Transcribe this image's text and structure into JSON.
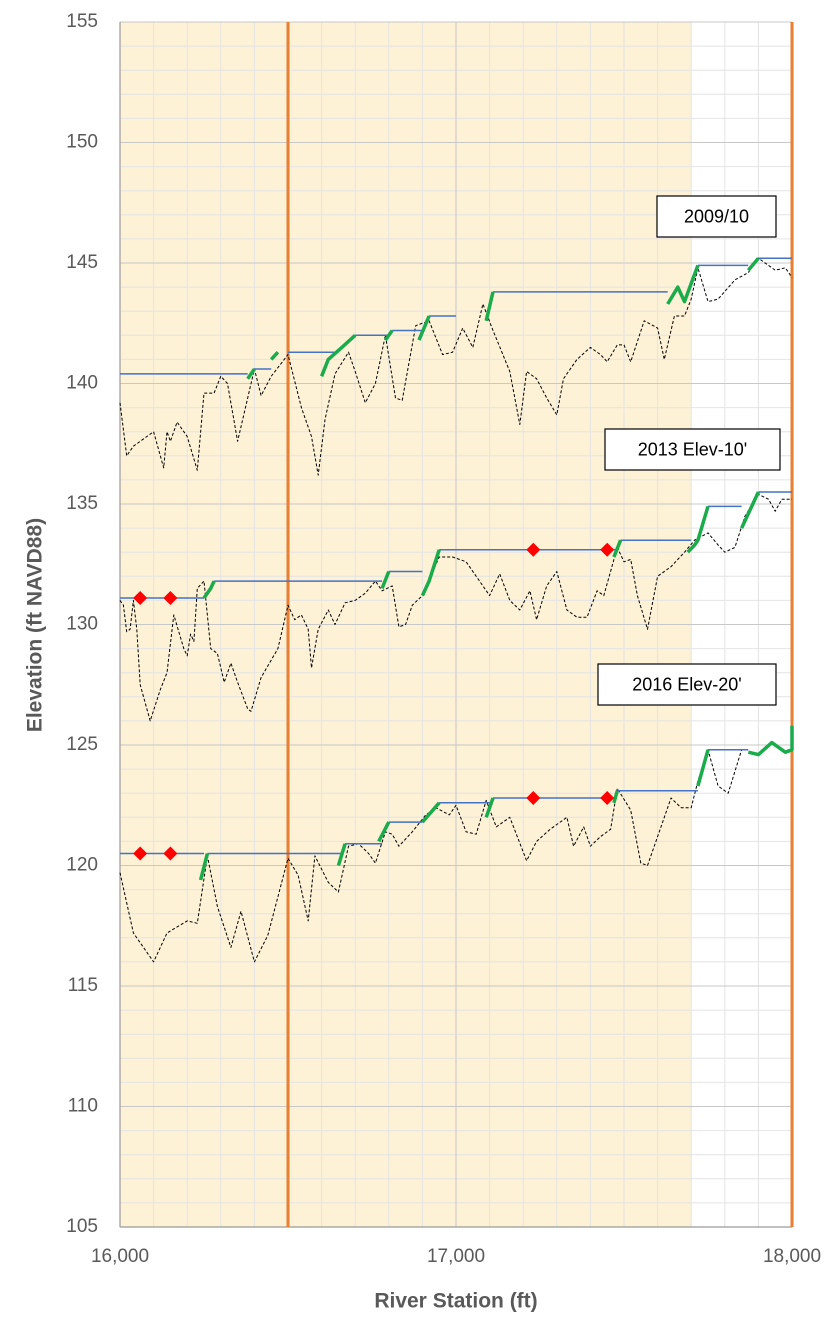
{
  "chart_data": {
    "type": "line",
    "x_label": "River Station (ft)",
    "y_label": "Elevation (ft NAVD88)",
    "xlim": [
      16000,
      18000
    ],
    "ylim": [
      105,
      155
    ],
    "xticks": [
      {
        "value": 16000,
        "label": "16,000"
      },
      {
        "value": 17000,
        "label": "17,000"
      },
      {
        "value": 18000,
        "label": "18,000"
      }
    ],
    "yticks": [
      105,
      110,
      115,
      120,
      125,
      130,
      135,
      140,
      145,
      150,
      155
    ],
    "xminorticks": [
      16100,
      16200,
      16300,
      16400,
      16500,
      16600,
      16700,
      16800,
      16900,
      17100,
      17200,
      17300,
      17400,
      17500,
      17600,
      17700,
      17800,
      17900
    ],
    "yminorticks": [
      106,
      107,
      108,
      109,
      111,
      112,
      113,
      114,
      116,
      117,
      118,
      119,
      121,
      122,
      123,
      124,
      126,
      127,
      128,
      129,
      131,
      132,
      133,
      134,
      136,
      137,
      138,
      139,
      141,
      142,
      143,
      144,
      146,
      147,
      148,
      149,
      151,
      152,
      153,
      154
    ],
    "grid": true,
    "shaded_region": {
      "x": [
        16000,
        17700
      ],
      "color": "#fdf1d6"
    },
    "vlines": {
      "x": [
        16500,
        18000
      ],
      "color": "#ed7d31"
    },
    "annotations": [
      "2009/10",
      "2013 Elev-10'",
      "2016 Elev-20'"
    ],
    "series": [
      {
        "kind": "line",
        "color": "#000000",
        "dash": true,
        "width": 1,
        "x": [
          16000,
          16020,
          16040,
          16080,
          16100,
          16130,
          16140,
          16150,
          16170,
          16200,
          16230,
          16250,
          16280,
          16300,
          16320,
          16350,
          16380,
          16400,
          16420,
          16450,
          16500,
          16540,
          16570,
          16590,
          16610,
          16640,
          16680,
          16700,
          16730,
          16760,
          16790,
          16820,
          16840,
          16880,
          16920,
          16960,
          16990,
          17020,
          17050,
          17080,
          17110,
          17160,
          17190,
          17210,
          17240,
          17270,
          17300,
          17320,
          17360,
          17400,
          17430,
          17450,
          17480,
          17500,
          17520,
          17560,
          17600,
          17620,
          17650,
          17680,
          17700,
          17720,
          17750,
          17780,
          17830,
          17870,
          17900,
          17950,
          17980,
          18000
        ],
        "values": [
          139.2,
          137.0,
          137.4,
          137.8,
          138.0,
          136.5,
          138.0,
          137.6,
          138.4,
          137.8,
          136.4,
          139.6,
          139.6,
          140.3,
          140.0,
          137.6,
          139.4,
          140.6,
          139.5,
          140.3,
          141.2,
          139.0,
          137.8,
          136.2,
          138.5,
          140.4,
          141.3,
          140.5,
          139.2,
          140.0,
          142.0,
          139.4,
          139.3,
          142.4,
          142.6,
          141.2,
          141.3,
          142.3,
          141.5,
          143.3,
          142.2,
          140.5,
          138.3,
          140.5,
          140.2,
          139.4,
          138.7,
          140.2,
          141.0,
          141.5,
          141.2,
          140.9,
          141.6,
          141.6,
          140.9,
          142.6,
          142.3,
          141.0,
          142.8,
          142.8,
          143.5,
          144.8,
          143.4,
          143.5,
          144.3,
          144.6,
          145.2,
          144.7,
          144.8,
          144.4
        ]
      },
      {
        "kind": "line",
        "color": "#4472c4",
        "dash": false,
        "width": 1.5,
        "x": [
          16000,
          16380,
          null,
          16400,
          16450,
          null,
          16500,
          16650,
          null,
          16700,
          16800,
          null,
          16810,
          16900,
          null,
          16920,
          17000,
          null,
          17110,
          17630,
          null,
          17720,
          17870,
          null,
          17900,
          18000
        ],
        "values": [
          140.4,
          140.4,
          null,
          140.6,
          140.6,
          null,
          141.3,
          141.3,
          null,
          142.0,
          142.0,
          null,
          142.2,
          142.2,
          null,
          142.8,
          142.8,
          null,
          143.8,
          143.8,
          null,
          144.9,
          144.9,
          null,
          145.2,
          145.2
        ]
      },
      {
        "kind": "line",
        "color": "#1aab4b",
        "dash": false,
        "width": 3.5,
        "x": [
          16380,
          16400,
          null,
          16450,
          16470,
          null,
          16600,
          16620,
          16660,
          16700,
          null,
          16790,
          16810,
          null,
          16890,
          16920,
          null,
          17090,
          17110,
          null,
          17630,
          17660,
          17680,
          17720,
          null,
          17870,
          17900
        ],
        "values": [
          140.2,
          140.6,
          null,
          141.0,
          141.3,
          null,
          140.3,
          141.0,
          141.5,
          142.0,
          null,
          141.8,
          142.2,
          null,
          141.8,
          142.8,
          null,
          142.6,
          143.8,
          null,
          143.3,
          144.0,
          143.4,
          144.9,
          null,
          144.7,
          145.2
        ]
      },
      {
        "kind": "line",
        "color": "#000000",
        "dash": true,
        "width": 1,
        "x": [
          16000,
          16010,
          16020,
          16030,
          16040,
          16050,
          16060,
          16090,
          16120,
          16140,
          16160,
          16190,
          16200,
          16210,
          16220,
          16230,
          16250,
          16270,
          16290,
          16310,
          16330,
          16350,
          16380,
          16390,
          16420,
          16470,
          16500,
          16520,
          16540,
          16560,
          16570,
          16590,
          16620,
          16640,
          16670,
          16700,
          16730,
          16760,
          16780,
          16810,
          16830,
          16850,
          16870,
          16900,
          16950,
          16990,
          17030,
          17080,
          17100,
          17130,
          17160,
          17190,
          17220,
          17240,
          17270,
          17300,
          17330,
          17360,
          17390,
          17420,
          17440,
          17480,
          17500,
          17520,
          17540,
          17570,
          17600,
          17640,
          17680,
          17710,
          17750,
          17780,
          17800,
          17830,
          17860,
          17900,
          17930,
          17950,
          17970,
          18000
        ],
        "values": [
          131.0,
          130.8,
          129.7,
          129.8,
          131.0,
          129.8,
          127.5,
          126.0,
          127.3,
          128.0,
          130.4,
          129.0,
          128.7,
          129.6,
          129.3,
          131.5,
          131.8,
          129.0,
          128.8,
          127.6,
          128.4,
          127.6,
          126.5,
          126.4,
          127.8,
          129.0,
          130.8,
          130.2,
          130.4,
          129.8,
          128.2,
          129.8,
          130.6,
          130.0,
          130.9,
          131.0,
          131.3,
          131.8,
          131.4,
          131.6,
          129.9,
          130.0,
          130.8,
          131.2,
          132.8,
          132.8,
          132.6,
          131.6,
          131.2,
          132.1,
          131.0,
          130.6,
          131.4,
          130.2,
          131.6,
          132.2,
          130.6,
          130.3,
          130.3,
          131.4,
          131.2,
          133.2,
          132.6,
          132.7,
          131.2,
          129.8,
          132.0,
          132.4,
          133.0,
          133.5,
          133.8,
          133.3,
          133.0,
          133.2,
          134.5,
          135.4,
          135.2,
          134.7,
          135.2,
          135.2
        ]
      },
      {
        "kind": "line",
        "color": "#4472c4",
        "dash": false,
        "width": 1.5,
        "x": [
          16000,
          16250,
          null,
          16280,
          16780,
          null,
          16800,
          16900,
          null,
          16950,
          17480,
          null,
          17490,
          17700,
          null,
          17750,
          17850,
          null,
          17900,
          18000
        ],
        "values": [
          131.1,
          131.1,
          null,
          131.8,
          131.8,
          null,
          132.2,
          132.2,
          null,
          133.1,
          133.1,
          null,
          133.5,
          133.5,
          null,
          134.9,
          134.9,
          null,
          135.5,
          135.5
        ]
      },
      {
        "kind": "line",
        "color": "#1aab4b",
        "dash": false,
        "width": 3.5,
        "x": [
          16250,
          16270,
          16280,
          null,
          16780,
          16800,
          null,
          16900,
          16920,
          16950,
          null,
          17470,
          17490,
          null,
          17690,
          17710,
          17720,
          17750,
          null,
          17850,
          17880,
          17900
        ],
        "values": [
          131.1,
          131.5,
          131.8,
          null,
          131.5,
          132.2,
          null,
          131.2,
          131.8,
          133.1,
          null,
          132.8,
          133.5,
          null,
          133.0,
          133.3,
          133.5,
          134.9,
          null,
          134.0,
          134.9,
          135.5
        ]
      },
      {
        "kind": "markers",
        "color": "#ff0000",
        "x": [
          16060,
          16150,
          17230,
          17450
        ],
        "values": [
          131.1,
          131.1,
          133.1,
          133.1
        ]
      },
      {
        "kind": "line",
        "color": "#000000",
        "dash": true,
        "width": 1,
        "x": [
          16000,
          16040,
          16100,
          16140,
          16200,
          16230,
          16260,
          16290,
          16330,
          16360,
          16400,
          16440,
          16500,
          16530,
          16560,
          16580,
          16620,
          16650,
          16680,
          16710,
          16740,
          16760,
          16790,
          16810,
          16830,
          16870,
          16910,
          16940,
          16980,
          17000,
          17030,
          17060,
          17090,
          17120,
          17160,
          17210,
          17240,
          17280,
          17330,
          17350,
          17380,
          17400,
          17430,
          17460,
          17480,
          17520,
          17550,
          17570,
          17600,
          17640,
          17670,
          17700,
          17720,
          17750,
          17780,
          17810,
          17850
        ],
        "values": [
          119.7,
          117.2,
          116.0,
          117.2,
          117.7,
          117.6,
          120.4,
          118.3,
          116.6,
          118.1,
          116.0,
          117.1,
          120.3,
          119.6,
          117.7,
          120.4,
          119.3,
          118.9,
          120.8,
          120.9,
          120.5,
          120.1,
          121.4,
          121.3,
          120.8,
          121.4,
          122.1,
          122.4,
          122.1,
          122.5,
          121.4,
          121.3,
          122.7,
          121.6,
          122.0,
          120.2,
          121.0,
          121.5,
          122.0,
          120.8,
          121.6,
          120.8,
          121.2,
          121.5,
          123.2,
          122.3,
          120.1,
          120.0,
          121.2,
          122.8,
          122.4,
          122.4,
          123.5,
          124.8,
          123.3,
          123.0,
          124.8
        ]
      },
      {
        "kind": "line",
        "color": "#4472c4",
        "dash": false,
        "width": 1.5,
        "x": [
          16000,
          16250,
          null,
          16260,
          16660,
          null,
          16670,
          16780,
          null,
          16800,
          16900,
          null,
          16950,
          17100,
          null,
          17110,
          17470,
          null,
          17480,
          17720,
          null,
          17750,
          17870
        ],
        "values": [
          120.5,
          120.5,
          null,
          120.5,
          120.5,
          null,
          120.9,
          120.9,
          null,
          121.8,
          121.8,
          null,
          122.6,
          122.6,
          null,
          122.8,
          122.8,
          null,
          123.1,
          123.1,
          null,
          124.8,
          124.8
        ]
      },
      {
        "kind": "line",
        "color": "#1aab4b",
        "dash": false,
        "width": 3.5,
        "x": [
          16240,
          16260,
          null,
          16650,
          16670,
          null,
          16770,
          16800,
          null,
          16900,
          16950,
          null,
          17090,
          17110,
          null,
          17470,
          17480,
          null,
          17720,
          17750,
          null,
          17870,
          17900,
          17940,
          17980,
          18000,
          18000
        ],
        "values": [
          119.4,
          120.5,
          null,
          120.0,
          120.9,
          null,
          121.0,
          121.8,
          null,
          121.8,
          122.6,
          null,
          122.0,
          122.8,
          null,
          122.6,
          123.1,
          null,
          123.3,
          124.8,
          null,
          124.7,
          124.6,
          125.1,
          124.7,
          124.8,
          125.8
        ]
      },
      {
        "kind": "markers",
        "color": "#ff0000",
        "x": [
          16060,
          16150,
          17230,
          17450
        ],
        "values": [
          120.5,
          120.5,
          122.8,
          122.8
        ]
      }
    ]
  }
}
